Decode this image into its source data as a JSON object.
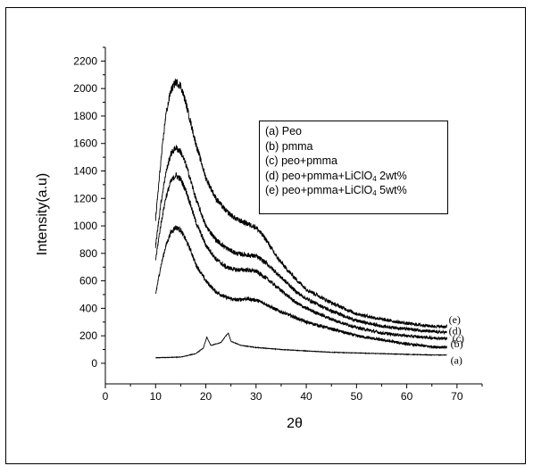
{
  "chart_data": {
    "type": "line",
    "title": "",
    "xlabel": "2θ",
    "ylabel": "Intensity(a.u)",
    "xlim": [
      0,
      75
    ],
    "ylim": [
      -150,
      2300
    ],
    "x_ticks": [
      "0",
      "10",
      "20",
      "30",
      "40",
      "50",
      "60",
      "70"
    ],
    "y_ticks": [
      "0",
      "200",
      "400",
      "600",
      "800",
      "1000",
      "1200",
      "1400",
      "1600",
      "1800",
      "2000",
      "2200"
    ],
    "legend": {
      "placement": "top-right",
      "entries": [
        {
          "tag": "(a)",
          "text": "Peo",
          "sub": "",
          "suffix": ""
        },
        {
          "tag": "(b)",
          "text": "pmma",
          "sub": "",
          "suffix": ""
        },
        {
          "tag": "(c)",
          "text": "peo+pmma",
          "sub": "",
          "suffix": ""
        },
        {
          "tag": "(d)",
          "text": "peo+pmma+LiClO",
          "sub": "4",
          "suffix": " 2wt%"
        },
        {
          "tag": "(e)",
          "text": "peo+pmma+LiClO",
          "sub": "4",
          "suffix": " 5wt%"
        }
      ]
    },
    "series": [
      {
        "name": "(a)",
        "x": [
          10,
          15,
          18,
          19.5,
          20.2,
          21,
          23,
          24,
          24.5,
          25,
          27,
          30,
          35,
          40,
          45,
          50,
          55,
          60,
          65,
          68
        ],
        "y": [
          40,
          45,
          70,
          110,
          190,
          130,
          150,
          200,
          220,
          160,
          130,
          115,
          100,
          90,
          80,
          75,
          70,
          65,
          60,
          60
        ]
      },
      {
        "name": "(b)",
        "x": [
          10,
          11,
          12,
          13,
          14,
          15,
          16,
          17,
          18,
          20,
          22,
          24,
          26,
          28,
          30,
          32,
          34,
          36,
          38,
          40,
          45,
          50,
          55,
          60,
          65,
          68
        ],
        "y": [
          500,
          700,
          850,
          950,
          990,
          970,
          900,
          820,
          720,
          600,
          520,
          480,
          460,
          470,
          460,
          430,
          390,
          360,
          330,
          300,
          250,
          200,
          170,
          140,
          120,
          115
        ]
      },
      {
        "name": "(c)",
        "x": [
          10,
          11,
          12,
          13,
          14,
          15,
          16,
          17,
          18,
          20,
          22,
          24,
          26,
          28,
          30,
          32,
          34,
          36,
          38,
          40,
          45,
          50,
          55,
          60,
          65,
          68
        ],
        "y": [
          750,
          1000,
          1200,
          1320,
          1370,
          1340,
          1260,
          1150,
          1030,
          860,
          760,
          700,
          680,
          680,
          670,
          620,
          560,
          500,
          440,
          400,
          320,
          260,
          220,
          200,
          185,
          180
        ]
      },
      {
        "name": "(d)",
        "x": [
          10,
          11,
          12,
          13,
          14,
          15,
          16,
          17,
          18,
          20,
          22,
          24,
          26,
          28,
          30,
          32,
          34,
          36,
          38,
          40,
          45,
          50,
          55,
          60,
          65,
          68
        ],
        "y": [
          850,
          1150,
          1380,
          1520,
          1570,
          1540,
          1450,
          1330,
          1200,
          1000,
          900,
          840,
          800,
          790,
          780,
          730,
          660,
          590,
          520,
          470,
          380,
          310,
          270,
          250,
          230,
          225
        ]
      },
      {
        "name": "(e)",
        "x": [
          10,
          11,
          12,
          13,
          14,
          15,
          16,
          17,
          18,
          20,
          22,
          24,
          26,
          28,
          30,
          32,
          34,
          36,
          38,
          40,
          45,
          50,
          55,
          60,
          65,
          68
        ],
        "y": [
          1050,
          1450,
          1800,
          1980,
          2050,
          2020,
          1900,
          1750,
          1600,
          1350,
          1200,
          1110,
          1050,
          1020,
          990,
          900,
          780,
          690,
          610,
          540,
          440,
          360,
          320,
          290,
          270,
          265
        ]
      }
    ]
  }
}
